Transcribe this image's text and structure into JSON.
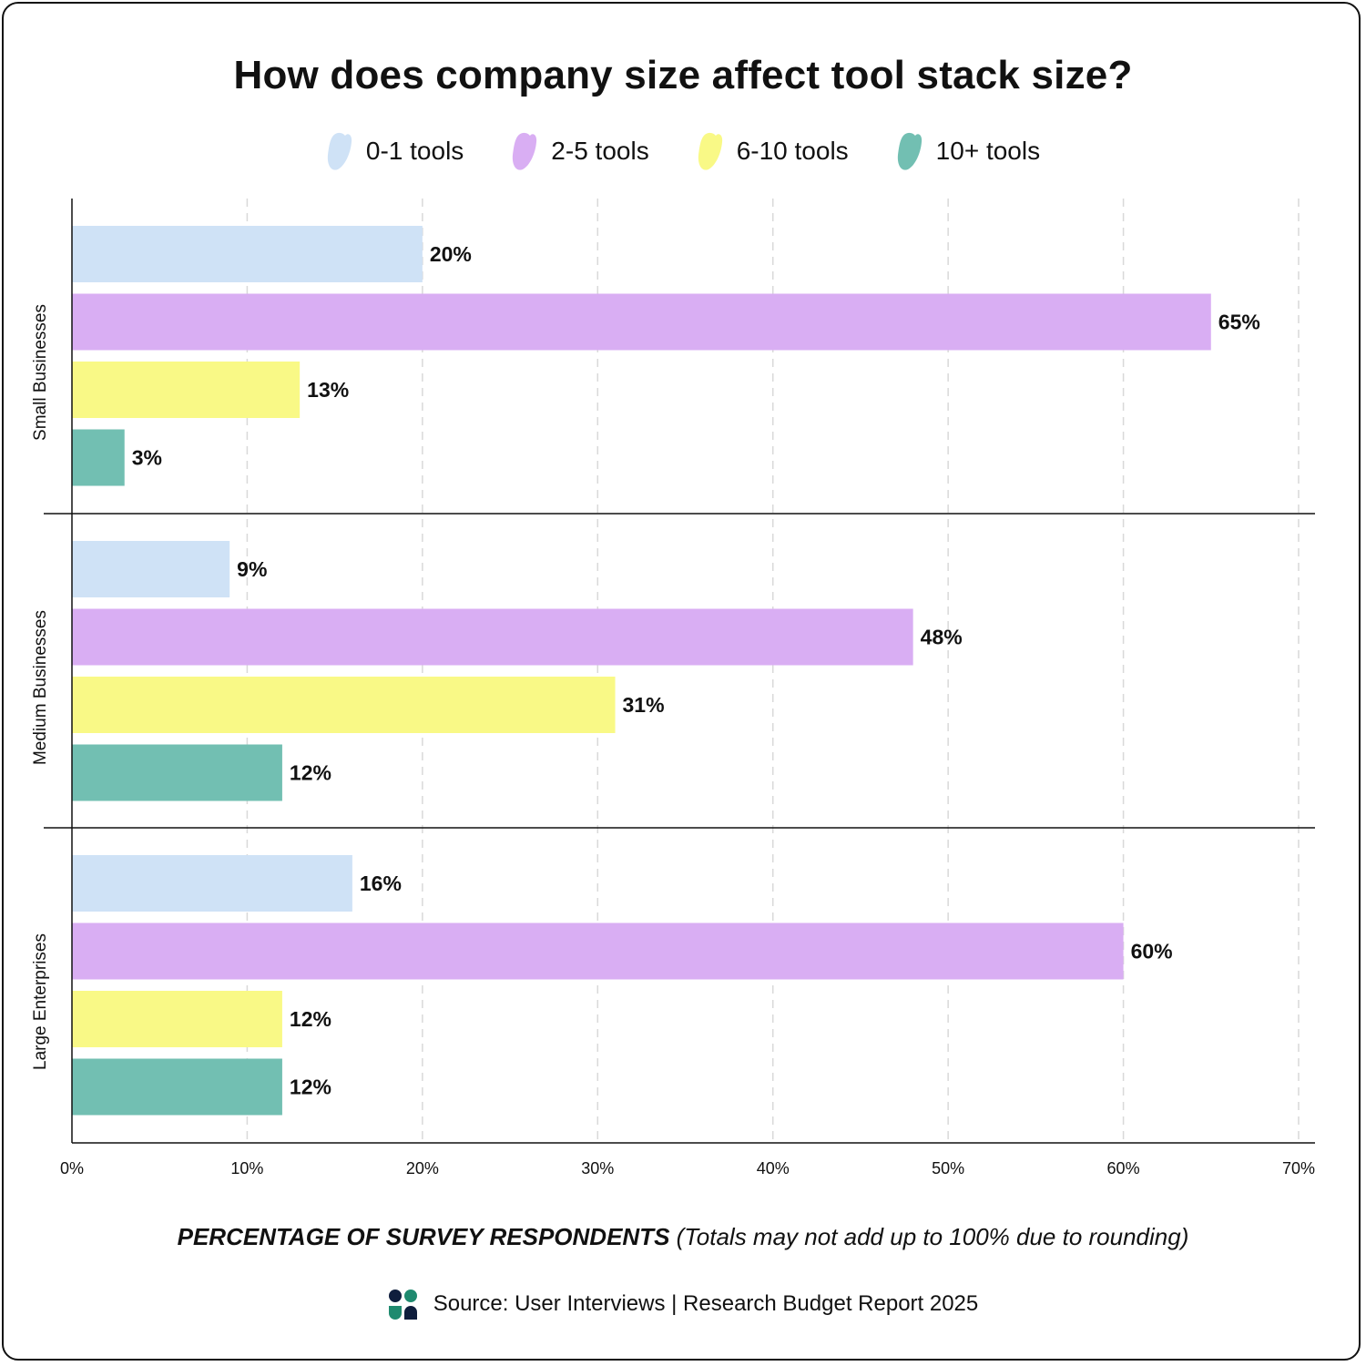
{
  "chart_data": {
    "type": "bar",
    "orientation": "horizontal",
    "title": "How does company size affect tool stack size?",
    "categories": [
      "Small Businesses",
      "Medium Businesses",
      "Large Enterprises"
    ],
    "series": [
      {
        "name": "0-1 tools",
        "color": "#cfe2f6",
        "values": [
          20,
          9,
          16
        ],
        "labels": [
          "20%",
          "9%",
          "16%"
        ]
      },
      {
        "name": "2-5 tools",
        "color": "#d9aef3",
        "values": [
          65,
          48,
          60
        ],
        "labels": [
          "65%",
          "48%",
          "60%"
        ]
      },
      {
        "name": "6-10 tools",
        "color": "#f9f986",
        "values": [
          13,
          31,
          12
        ],
        "labels": [
          "13%",
          "31%",
          "12%"
        ]
      },
      {
        "name": "10+ tools",
        "color": "#72bfb2",
        "values": [
          3,
          12,
          12
        ],
        "labels": [
          "3%",
          "12%",
          "12%"
        ]
      }
    ],
    "xlim": [
      0,
      70
    ],
    "xticks": [
      0,
      10,
      20,
      30,
      40,
      50,
      60,
      70
    ],
    "xtick_labels": [
      "0%",
      "10%",
      "20%",
      "30%",
      "40%",
      "50%",
      "60%",
      "70%"
    ],
    "xlabel_strong": "PERCENTAGE OF SURVEY RESPONDENTS",
    "xlabel_note": " (Totals may not add up to 100% due to rounding)",
    "grid": "vertical dashed",
    "legend_position": "top-center"
  },
  "source": {
    "text": "Source: User Interviews | Research Budget Report 2025",
    "logo_icon": "user-interviews-logo-icon"
  },
  "colors": {
    "text": "#111111",
    "grid": "#d9d9d9",
    "logo_navy": "#0f1e3d",
    "logo_green": "#1f8a6f"
  }
}
